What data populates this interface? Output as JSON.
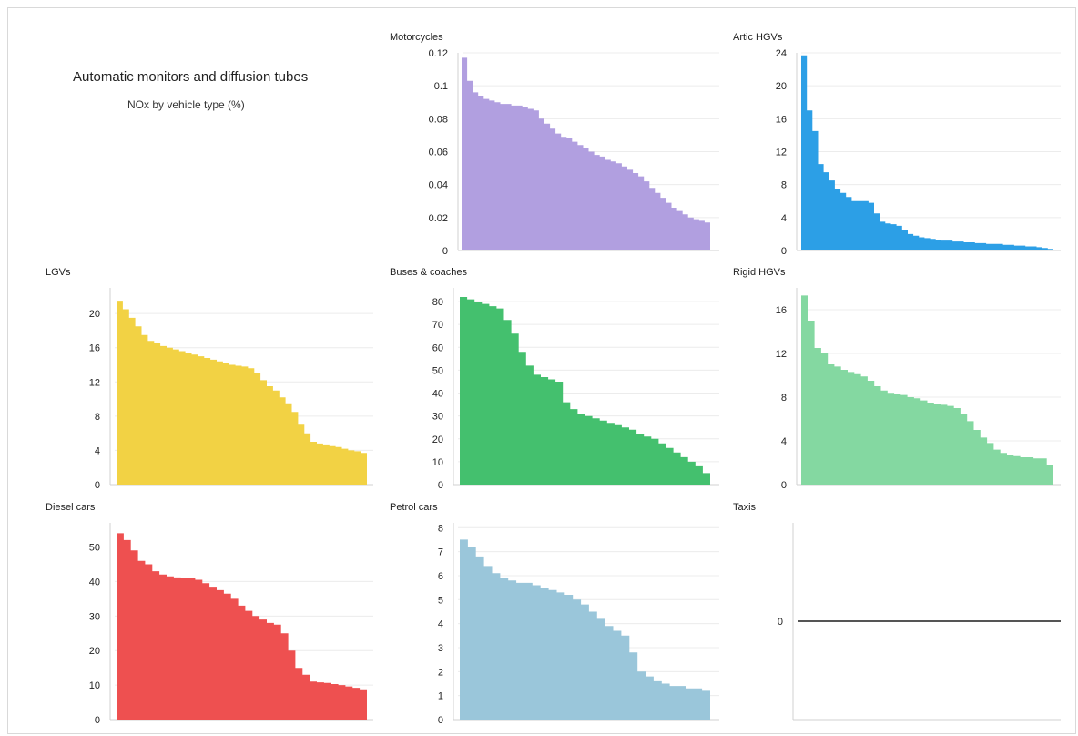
{
  "header": {
    "title": "Automatic monitors and diffusion tubes",
    "subtitle": "NOx by vehicle type (%)"
  },
  "chart_data": [
    {
      "type": "area",
      "title": "Motorcycles",
      "color": "#b19fe0",
      "yticks": [
        0,
        0.02,
        0.04,
        0.06,
        0.08,
        0.1,
        0.12
      ],
      "ytick_labels": [
        "0",
        "0.02",
        "0.04",
        "0.06",
        "0.08",
        "0.1",
        "0.12"
      ],
      "ylim": [
        0,
        0.12
      ],
      "grid": true,
      "values": [
        0.117,
        0.103,
        0.096,
        0.094,
        0.092,
        0.091,
        0.09,
        0.089,
        0.089,
        0.088,
        0.088,
        0.087,
        0.086,
        0.085,
        0.08,
        0.077,
        0.074,
        0.071,
        0.069,
        0.068,
        0.066,
        0.064,
        0.062,
        0.06,
        0.058,
        0.057,
        0.055,
        0.054,
        0.053,
        0.051,
        0.049,
        0.047,
        0.045,
        0.042,
        0.038,
        0.035,
        0.032,
        0.029,
        0.026,
        0.024,
        0.022,
        0.02,
        0.019,
        0.018,
        0.017
      ]
    },
    {
      "type": "area",
      "title": "Artic HGVs",
      "color": "#2c9fe6",
      "yticks": [
        0,
        4,
        8,
        12,
        16,
        20,
        24
      ],
      "ytick_labels": [
        "0",
        "4",
        "8",
        "12",
        "16",
        "20",
        "24"
      ],
      "ylim": [
        0,
        24
      ],
      "grid": true,
      "values": [
        23.7,
        17,
        14.5,
        10.5,
        9.5,
        8.5,
        7.5,
        7,
        6.5,
        6,
        6,
        6,
        5.8,
        4.5,
        3.5,
        3.3,
        3.2,
        3,
        2.5,
        2,
        1.8,
        1.6,
        1.5,
        1.4,
        1.3,
        1.2,
        1.2,
        1.1,
        1.1,
        1,
        1,
        0.9,
        0.9,
        0.8,
        0.8,
        0.8,
        0.7,
        0.7,
        0.6,
        0.6,
        0.5,
        0.5,
        0.4,
        0.3,
        0.2
      ]
    },
    {
      "type": "area",
      "title": "LGVs",
      "color": "#f2d244",
      "yticks": [
        0,
        4,
        8,
        12,
        16,
        20
      ],
      "ytick_labels": [
        "0",
        "4",
        "8",
        "12",
        "16",
        "20"
      ],
      "ylim": [
        0,
        23
      ],
      "grid": true,
      "values": [
        21.5,
        20.5,
        19.5,
        18.5,
        17.5,
        16.8,
        16.5,
        16.2,
        16,
        15.8,
        15.6,
        15.4,
        15.2,
        15,
        14.8,
        14.6,
        14.4,
        14.2,
        14,
        13.9,
        13.8,
        13.6,
        13,
        12.2,
        11.5,
        11,
        10.2,
        9.5,
        8.5,
        7,
        6,
        5,
        4.8,
        4.7,
        4.5,
        4.4,
        4.2,
        4,
        3.9,
        3.7
      ]
    },
    {
      "type": "area",
      "title": "Buses & coaches",
      "color": "#44c06e",
      "yticks": [
        0,
        10,
        20,
        30,
        40,
        50,
        60,
        70,
        80
      ],
      "ytick_labels": [
        "0",
        "10",
        "20",
        "30",
        "40",
        "50",
        "60",
        "70",
        "80"
      ],
      "ylim": [
        0,
        86
      ],
      "grid": true,
      "values": [
        82,
        81,
        80,
        79,
        78,
        77,
        72,
        66,
        58,
        52,
        48,
        47,
        46,
        45,
        36,
        33,
        31,
        30,
        29,
        28,
        27,
        26,
        25,
        24,
        22,
        21,
        20,
        18,
        16,
        14,
        12,
        10,
        8,
        5
      ]
    },
    {
      "type": "area",
      "title": "Rigid HGVs",
      "color": "#84d8a1",
      "yticks": [
        0,
        4,
        8,
        12,
        16
      ],
      "ytick_labels": [
        "0",
        "4",
        "8",
        "12",
        "16"
      ],
      "ylim": [
        0,
        18
      ],
      "grid": true,
      "values": [
        17.3,
        15,
        12.5,
        12,
        11,
        10.8,
        10.5,
        10.3,
        10.1,
        9.9,
        9.5,
        9,
        8.6,
        8.4,
        8.3,
        8.2,
        8,
        7.9,
        7.7,
        7.5,
        7.4,
        7.3,
        7.2,
        7,
        6.5,
        5.8,
        5,
        4.3,
        3.8,
        3.2,
        2.9,
        2.7,
        2.6,
        2.5,
        2.5,
        2.4,
        2.4,
        1.8
      ]
    },
    {
      "type": "area",
      "title": "Diesel cars",
      "color": "#ee5050",
      "yticks": [
        0,
        10,
        20,
        30,
        40,
        50
      ],
      "ytick_labels": [
        "0",
        "10",
        "20",
        "30",
        "40",
        "50"
      ],
      "ylim": [
        0,
        57
      ],
      "grid": true,
      "values": [
        54,
        52,
        49,
        46,
        45,
        43,
        42,
        41.5,
        41.2,
        41,
        41,
        40.5,
        39.5,
        38.5,
        37.5,
        36.5,
        35,
        33,
        31.5,
        30,
        29,
        28,
        27.5,
        25,
        20,
        15,
        13,
        11,
        10.8,
        10.6,
        10.3,
        10,
        9.6,
        9.2,
        8.8
      ]
    },
    {
      "type": "area",
      "title": "Petrol cars",
      "color": "#9ac6da",
      "yticks": [
        0,
        1,
        2,
        3,
        4,
        5,
        6,
        7,
        8
      ],
      "ytick_labels": [
        "0",
        "1",
        "2",
        "3",
        "4",
        "5",
        "6",
        "7",
        "8"
      ],
      "ylim": [
        0,
        8.2
      ],
      "grid": true,
      "values": [
        7.5,
        7.2,
        6.8,
        6.4,
        6.1,
        5.9,
        5.8,
        5.7,
        5.7,
        5.6,
        5.5,
        5.4,
        5.3,
        5.2,
        5,
        4.8,
        4.5,
        4.2,
        3.9,
        3.7,
        3.5,
        2.8,
        2,
        1.8,
        1.6,
        1.5,
        1.4,
        1.4,
        1.3,
        1.3,
        1.2
      ]
    },
    {
      "type": "line",
      "title": "Taxis",
      "color": "#555555",
      "yticks": [
        0
      ],
      "ytick_labels": [
        "0"
      ],
      "ylim": [
        -1,
        1
      ],
      "grid": false,
      "values": [
        0,
        0
      ]
    }
  ]
}
